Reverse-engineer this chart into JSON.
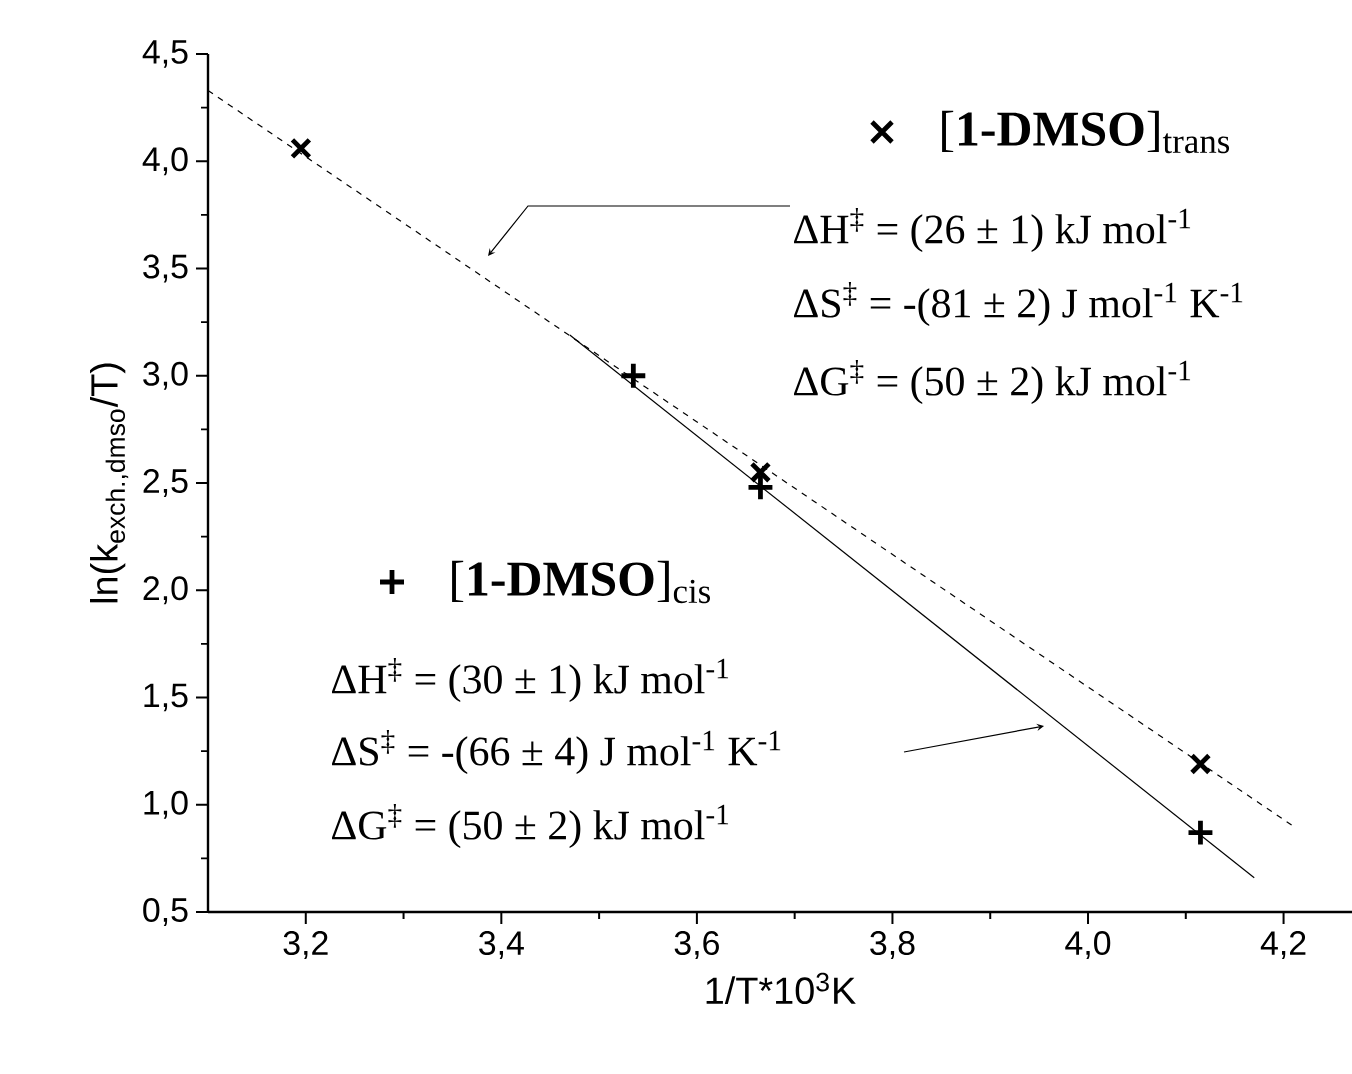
{
  "chart_data": {
    "type": "scatter",
    "xlabel": "1/T*10$^{3}$K",
    "ylabel": "ln(k$_{exch.,dmso}$/T)",
    "xlim": [
      3.1,
      4.27
    ],
    "ylim": [
      0.5,
      4.5
    ],
    "xticks": [
      {
        "value": 3.2,
        "label": "3,2"
      },
      {
        "value": 3.4,
        "label": "3,4"
      },
      {
        "value": 3.6,
        "label": "3,6"
      },
      {
        "value": 3.8,
        "label": "3,8"
      },
      {
        "value": 4.0,
        "label": "4,0"
      },
      {
        "value": 4.2,
        "label": "4,2"
      }
    ],
    "yticks": [
      {
        "value": 0.5,
        "label": "0,5"
      },
      {
        "value": 1.0,
        "label": "1,0"
      },
      {
        "value": 1.5,
        "label": "1,5"
      },
      {
        "value": 2.0,
        "label": "2,0"
      },
      {
        "value": 2.5,
        "label": "2,5"
      },
      {
        "value": 3.0,
        "label": "3,0"
      },
      {
        "value": 3.5,
        "label": "3,5"
      },
      {
        "value": 4.0,
        "label": "4,0"
      },
      {
        "value": 4.5,
        "label": "4,5"
      }
    ],
    "series": [
      {
        "name": "[**1-DMSO**]$_{trans}$",
        "color": "#000000",
        "marker": "cross",
        "x": [
          3.195,
          3.665,
          4.115
        ],
        "values": [
          4.06,
          2.55,
          1.19
        ]
      },
      {
        "name": "[**1-DMSO**]$_{cis}$",
        "color": "#000000",
        "marker": "plus",
        "x": [
          3.535,
          3.665,
          4.115
        ],
        "values": [
          3.0,
          2.48,
          0.87
        ]
      },
      {
        "type": "line",
        "color": "#000000",
        "line_style": "dashed",
        "marker": "none",
        "x": [
          3.1,
          4.21
        ],
        "values": [
          4.33,
          0.9
        ]
      },
      {
        "type": "line",
        "color": "#000000",
        "line_style": "solid",
        "marker": "none",
        "x": [
          3.47,
          4.17
        ],
        "values": [
          3.19,
          0.66
        ]
      }
    ],
    "legend": "top right",
    "annotations": [
      "ΔH$^{‡}$ = (26 ± 1) kJ mol$^{-1}$",
      "ΔS$^{‡}$ = -(81 ± 2) J mol$^{-1}$ K$^{-1}$",
      "ΔG$^{‡}$ = (50 ± 2) kJ mol$^{-1}$",
      "ΔH$^{‡}$ = (30 ± 1) kJ mol$^{-1}$",
      "ΔS$^{‡}$ = -(66 ± 4) J mol$^{-1}$ K$^{-1}$",
      "ΔG$^{‡}$ = (50 ± 2) kJ mol$^{-1}$"
    ]
  }
}
